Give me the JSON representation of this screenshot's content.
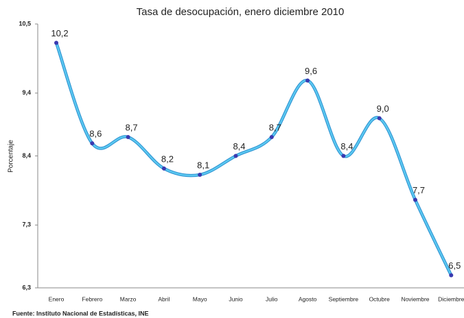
{
  "chart_data": {
    "type": "line",
    "title": "Tasa de desocupación, enero diciembre 2010",
    "y_label": "Porcentaje",
    "source": "Fuente: Instituto Nacional de Estadísticas, INE",
    "categories": [
      "Enero",
      "Febrero",
      "Marzo",
      "Abril",
      "Mayo",
      "Junio",
      "Julio",
      "Agosto",
      "Septiembre",
      "Octubre",
      "Noviembre",
      "Diciembre"
    ],
    "values": [
      10.2,
      8.6,
      8.7,
      8.2,
      8.1,
      8.4,
      8.7,
      9.6,
      8.4,
      9.0,
      7.7,
      6.5
    ],
    "value_labels": [
      "10,2",
      "8,6",
      "8,7",
      "8,2",
      "8,1",
      "8,4",
      "8,7",
      "9,6",
      "8,4",
      "9,0",
      "7,7",
      "6,5"
    ],
    "color": "#5bc8f0",
    "marker_color": "#3a3ab0",
    "ylim": [
      6.3,
      10.5
    ],
    "yticks": [
      {
        "value": 10.5,
        "label": "10,5"
      },
      {
        "value": 9.4,
        "label": "9,4"
      },
      {
        "value": 8.4,
        "label": "8,4"
      },
      {
        "value": 7.3,
        "label": "7,3"
      },
      {
        "value": 6.3,
        "label": "6,3"
      }
    ]
  }
}
